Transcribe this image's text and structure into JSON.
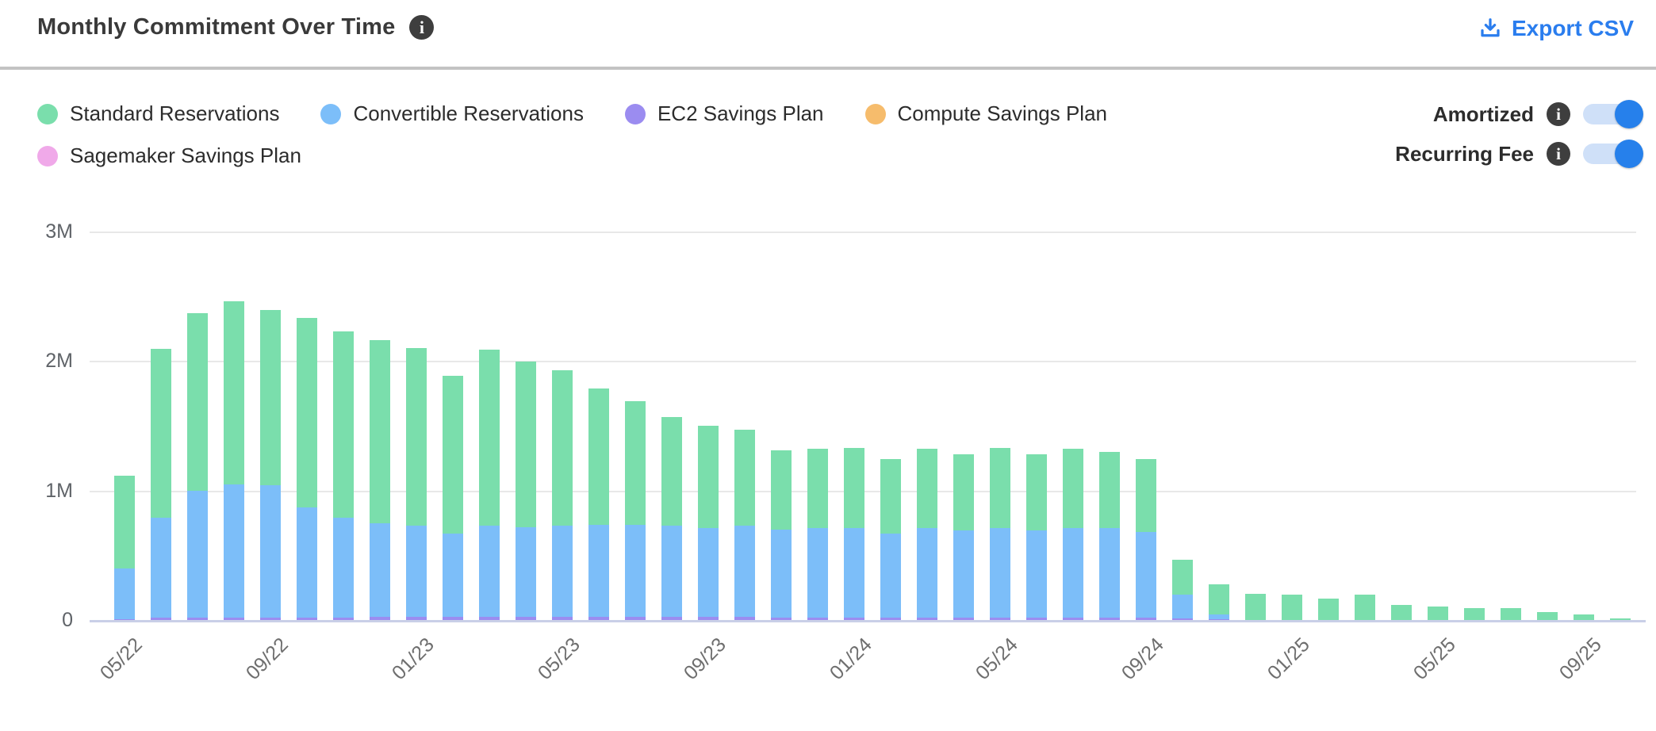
{
  "header": {
    "title": "Monthly Commitment Over Time",
    "info_icon": "i",
    "export_label": "Export CSV"
  },
  "legend": {
    "items": [
      {
        "label": "Standard Reservations",
        "color": "#7adeac"
      },
      {
        "label": "Convertible Reservations",
        "color": "#7cbef9"
      },
      {
        "label": "EC2 Savings Plan",
        "color": "#9b8cf0"
      },
      {
        "label": "Compute Savings Plan",
        "color": "#f6bc6c"
      },
      {
        "label": "Sagemaker Savings Plan",
        "color": "#f0a9e9"
      }
    ]
  },
  "toggles": [
    {
      "label": "Amortized",
      "state": "on",
      "info_icon": "i"
    },
    {
      "label": "Recurring Fee",
      "state": "on",
      "info_icon": "i"
    }
  ],
  "colors": {
    "accent_blue": "#2a7dee",
    "toggle_track": "#cfe0f8",
    "toggle_knob": "#2680eb",
    "info_badge_bg": "#3e3e3e",
    "gridline": "#e8e8e8",
    "zero_line": "#c9cfe7"
  },
  "chart_data": {
    "type": "bar",
    "stacked": true,
    "title": "Monthly Commitment Over Time",
    "xlabel": "",
    "ylabel": "",
    "unit": "millions",
    "ylim": [
      0,
      3
    ],
    "grid": "horizontal",
    "legend_position": "top-left",
    "yticks": [
      {
        "label": "0",
        "value": 0
      },
      {
        "label": "1M",
        "value": 1
      },
      {
        "label": "2M",
        "value": 2
      },
      {
        "label": "3M",
        "value": 3
      }
    ],
    "x_tick_every": 4,
    "x_tick_labels_shown": [
      "05/22",
      "09/22",
      "01/23",
      "05/23",
      "09/23",
      "01/24",
      "05/24",
      "09/24",
      "01/25",
      "05/25",
      "09/25"
    ],
    "categories": [
      "05/22",
      "06/22",
      "07/22",
      "08/22",
      "09/22",
      "10/22",
      "11/22",
      "12/22",
      "01/23",
      "02/23",
      "03/23",
      "04/23",
      "05/23",
      "06/23",
      "07/23",
      "08/23",
      "09/23",
      "10/23",
      "11/23",
      "12/23",
      "01/24",
      "02/24",
      "03/24",
      "04/24",
      "05/24",
      "06/24",
      "07/24",
      "08/24",
      "09/24",
      "10/24",
      "11/24",
      "12/24",
      "01/25",
      "02/25",
      "03/25",
      "04/25",
      "05/25",
      "06/25",
      "07/25",
      "08/25",
      "09/25",
      "10/25"
    ],
    "stack_order_bottom_to_top": [
      "Sagemaker Savings Plan",
      "Compute Savings Plan",
      "EC2 Savings Plan",
      "Convertible Reservations",
      "Standard Reservations"
    ],
    "series": [
      {
        "name": "Standard Reservations",
        "color": "#7adeac",
        "values": [
          0.72,
          1.3,
          1.37,
          1.41,
          1.35,
          1.46,
          1.44,
          1.41,
          1.37,
          1.22,
          1.36,
          1.28,
          1.2,
          1.05,
          0.95,
          0.84,
          0.79,
          0.74,
          0.61,
          0.61,
          0.62,
          0.57,
          0.61,
          0.59,
          0.62,
          0.59,
          0.61,
          0.59,
          0.56,
          0.27,
          0.23,
          0.21,
          0.2,
          0.17,
          0.2,
          0.12,
          0.11,
          0.1,
          0.1,
          0.07,
          0.05,
          0.02
        ]
      },
      {
        "name": "Convertible Reservations",
        "color": "#7cbef9",
        "values": [
          0.39,
          0.77,
          0.98,
          1.03,
          1.02,
          0.85,
          0.77,
          0.72,
          0.7,
          0.64,
          0.7,
          0.69,
          0.7,
          0.71,
          0.71,
          0.7,
          0.68,
          0.7,
          0.68,
          0.69,
          0.69,
          0.65,
          0.69,
          0.67,
          0.69,
          0.67,
          0.69,
          0.69,
          0.66,
          0.18,
          0.04,
          0,
          0,
          0,
          0,
          0,
          0,
          0,
          0,
          0,
          0,
          0
        ]
      },
      {
        "name": "EC2 Savings Plan",
        "color": "#9b8cf0",
        "values": [
          0.012,
          0.025,
          0.025,
          0.025,
          0.025,
          0.025,
          0.025,
          0.025,
          0.025,
          0.025,
          0.025,
          0.025,
          0.025,
          0.025,
          0.025,
          0.025,
          0.025,
          0.025,
          0.025,
          0.025,
          0.025,
          0.025,
          0.025,
          0.025,
          0.025,
          0.025,
          0.025,
          0.025,
          0.025,
          0.02,
          0.01,
          0,
          0,
          0,
          0,
          0,
          0,
          0,
          0,
          0,
          0,
          0
        ]
      },
      {
        "name": "Compute Savings Plan",
        "color": "#f6bc6c",
        "values": [
          0,
          0,
          0,
          0,
          0,
          0,
          0,
          0,
          0,
          0,
          0,
          0,
          0,
          0,
          0,
          0,
          0,
          0,
          0,
          0,
          0,
          0,
          0,
          0,
          0,
          0,
          0,
          0,
          0,
          0,
          0,
          0,
          0,
          0,
          0,
          0,
          0,
          0,
          0,
          0,
          0,
          0
        ]
      },
      {
        "name": "Sagemaker Savings Plan",
        "color": "#f0a9e9",
        "values": [
          0,
          0,
          0,
          0,
          0,
          0,
          0,
          0.008,
          0.008,
          0.008,
          0.008,
          0.008,
          0.008,
          0.008,
          0.008,
          0.008,
          0.008,
          0.008,
          0,
          0,
          0,
          0,
          0,
          0,
          0,
          0,
          0,
          0,
          0,
          0,
          0,
          0,
          0,
          0,
          0,
          0,
          0,
          0,
          0,
          0,
          0,
          0
        ]
      }
    ]
  }
}
